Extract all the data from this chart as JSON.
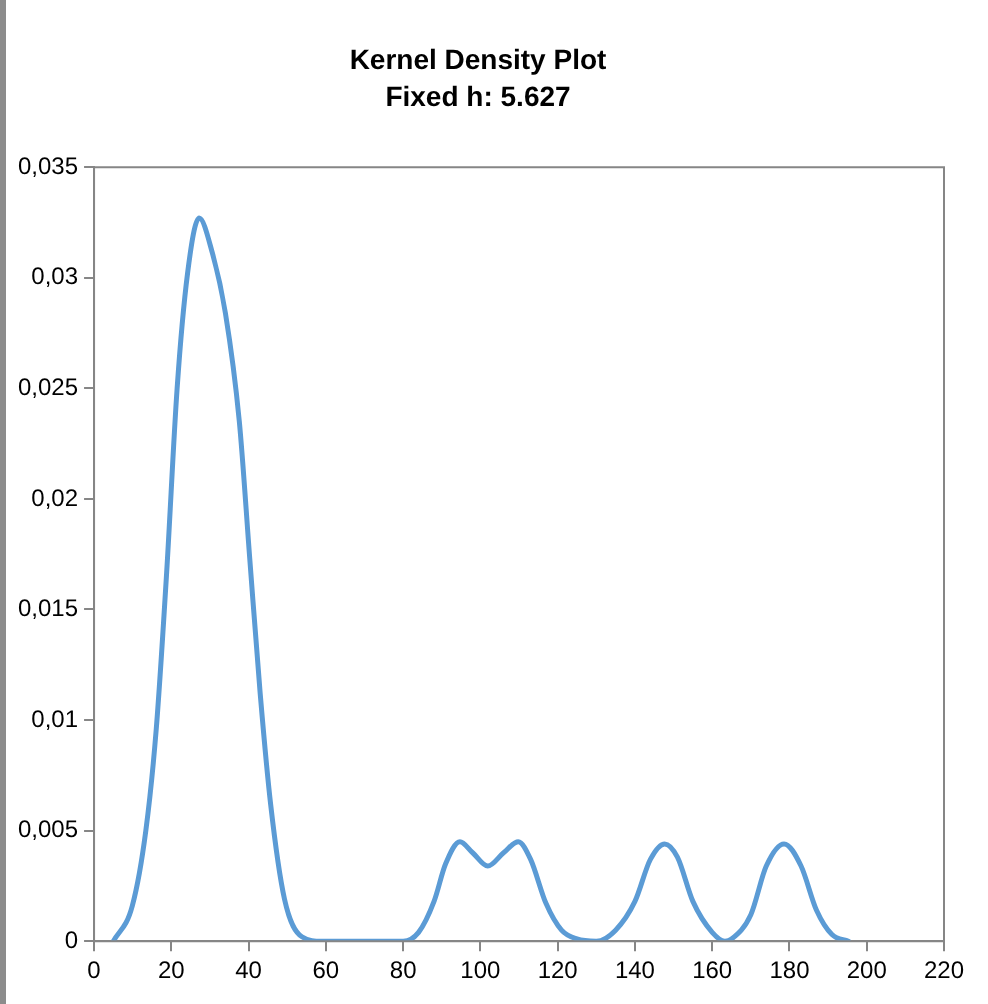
{
  "chart_data": {
    "type": "line",
    "title": "Kernel Density Plot",
    "subtitle": "Fixed h: 5.627",
    "series": [
      {
        "color": "#5b9bd5",
        "x": [
          5,
          9.9,
          13.4,
          16.1,
          18.8,
          21.5,
          24.2,
          27.2,
          30.5,
          34,
          37.6,
          40.3,
          43,
          45.7,
          49.3,
          53.8,
          59,
          62,
          70,
          76,
          80,
          84,
          88,
          91,
          94.7,
          98,
          101.9,
          106,
          109.8,
          113,
          117,
          121,
          125,
          130,
          135,
          140,
          144,
          147.7,
          151,
          155,
          160,
          163.3,
          165,
          170,
          174,
          178.6,
          183,
          187,
          191,
          195.3
        ],
        "values": [
          0,
          0.0016,
          0.005,
          0.0096,
          0.0167,
          0.025,
          0.0302,
          0.0327,
          0.0312,
          0.0284,
          0.0235,
          0.0173,
          0.0112,
          0.0062,
          0.0019,
          0.0002,
          0,
          0,
          0,
          0,
          0,
          0.0004,
          0.0018,
          0.0035,
          0.0045,
          0.004,
          0.0034,
          0.004,
          0.0045,
          0.0037,
          0.0017,
          0.0005,
          0.0001,
          0,
          0.0005,
          0.0018,
          0.0037,
          0.0044,
          0.0038,
          0.0018,
          0.0004,
          0,
          0.0001,
          0.0012,
          0.0034,
          0.0044,
          0.0034,
          0.0014,
          0.0003,
          0
        ]
      }
    ],
    "xlim": [
      0,
      220
    ],
    "xticks": [
      0,
      20,
      40,
      60,
      80,
      100,
      120,
      140,
      160,
      180,
      200,
      220
    ],
    "ylim": [
      0,
      0.035
    ],
    "yticks": [
      0,
      {
        "value": 0.005,
        "label": "0,005"
      },
      {
        "value": 0.01,
        "label": "0,01"
      },
      {
        "value": 0.015,
        "label": "0,015"
      },
      {
        "value": 0.02,
        "label": "0,02"
      },
      {
        "value": 0.025,
        "label": "0,025"
      },
      {
        "value": 0.03,
        "label": "0,03"
      },
      {
        "value": 0.035,
        "label": "0,035"
      }
    ],
    "grid": false,
    "legend": false,
    "marker": "none",
    "line_style": "solid"
  }
}
